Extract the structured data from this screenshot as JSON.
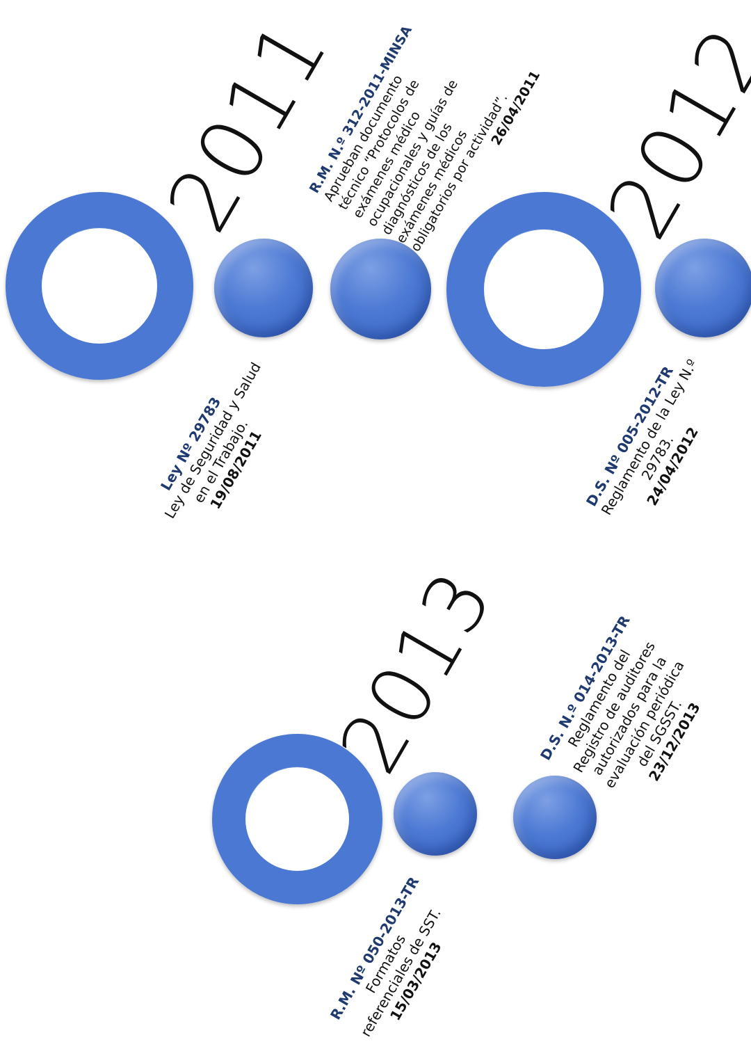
{
  "years": [
    "2011",
    "2012",
    "2013"
  ],
  "events": [
    {
      "code": "Ley Nº 29783",
      "desc": [
        "Ley de Seguridad y Salud",
        "en el Trabajo."
      ],
      "date": "19/08/2011"
    },
    {
      "code": "R.M. N.º 312-2011-MINSA",
      "desc": [
        "Aprueban documento",
        "técnico “Protocolos de",
        "exámenes médico",
        "ocupacionales y guías de",
        "diagnósticos de los",
        "exámenes médicos",
        "obligatorios por actividad”."
      ],
      "date": "26/04/2011"
    },
    {
      "code": "D.S. Nº 005-2012-TR",
      "desc": [
        "Reglamento de la Ley N.º",
        "29783."
      ],
      "date": "24/04/2012"
    },
    {
      "code": "R.M. Nº 050-2013-TR",
      "desc": [
        "Formatos",
        "referenciales de SST."
      ],
      "date": "15/03/2013"
    },
    {
      "code": "D.S. N.º 014-2013-TR",
      "desc": [
        "Reglamento del",
        "Registro de auditores",
        "autorizados para la",
        "evaluación periódica",
        "del SGSST."
      ],
      "date": "23/12/2013"
    }
  ],
  "colors": {
    "accent": "#4a78d2",
    "code_text": "#1f3a6e"
  }
}
